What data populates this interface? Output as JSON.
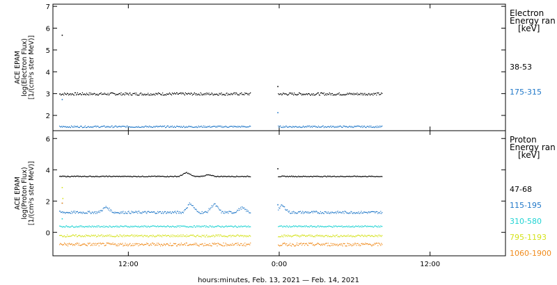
{
  "chart_data": [
    {
      "type": "scatter",
      "panel": "electron",
      "ylabel": [
        "ACE EPAM",
        "log(Electron Flux)",
        "[1/(cm²s ster MeV)]"
      ],
      "ylim": [
        1.3,
        7.1
      ],
      "yticks": [
        2,
        3,
        4,
        5,
        6,
        7
      ],
      "legend": {
        "title": [
          "Electron",
          "Energy ran",
          "[keV]"
        ],
        "placement": "right"
      },
      "series": [
        {
          "name": "38-53",
          "color": "#000000",
          "segments": [
            {
              "x_start": 6.5,
              "x_end": 21.7,
              "y_base": 3.0,
              "noise": 0.06
            },
            {
              "x_start": 23.9,
              "x_end": 32.2,
              "y_base": 3.0,
              "noise": 0.06
            }
          ],
          "outliers": [
            [
              6.7,
              5.7
            ],
            [
              23.85,
              3.35
            ]
          ]
        },
        {
          "name": "175-315",
          "color": "#1f77c8",
          "segments": [
            {
              "x_start": 6.5,
              "x_end": 21.7,
              "y_base": 1.5,
              "noise": 0.04
            },
            {
              "x_start": 23.9,
              "x_end": 32.2,
              "y_base": 1.5,
              "noise": 0.04
            }
          ],
          "outliers": [
            [
              6.7,
              2.75
            ],
            [
              23.85,
              2.15
            ]
          ]
        }
      ]
    },
    {
      "type": "scatter",
      "panel": "proton",
      "ylabel": [
        "ACE EPAM",
        "log(Proton Flux)",
        "[1/(cm²s ster MeV)]"
      ],
      "ylim": [
        -1.5,
        6.5
      ],
      "yticks": [
        0,
        2,
        4,
        6
      ],
      "legend": {
        "title": [
          "Proton",
          "Energy ran",
          "[keV]"
        ],
        "placement": "right"
      },
      "series": [
        {
          "name": "47-68",
          "color": "#000000",
          "segments": [
            {
              "x_start": 6.5,
              "x_end": 21.7,
              "y_base": 3.6,
              "noise": 0.03
            },
            {
              "x_start": 23.9,
              "x_end": 32.2,
              "y_base": 3.6,
              "noise": 0.03
            }
          ],
          "bumps": [
            [
              16.6,
              0.25
            ],
            [
              18.3,
              0.1
            ]
          ],
          "outliers": [
            [
              23.85,
              4.1
            ]
          ]
        },
        {
          "name": "115-195",
          "color": "#1f77c8",
          "segments": [
            {
              "x_start": 6.5,
              "x_end": 21.7,
              "y_base": 1.3,
              "noise": 0.08
            },
            {
              "x_start": 23.9,
              "x_end": 32.2,
              "y_base": 1.3,
              "noise": 0.08
            }
          ],
          "bumps": [
            [
              10.2,
              0.35
            ],
            [
              16.9,
              0.6
            ],
            [
              18.8,
              0.55
            ],
            [
              21.0,
              0.3
            ],
            [
              24.2,
              0.45
            ]
          ],
          "outliers": [
            [
              6.7,
              1.9
            ],
            [
              23.85,
              1.8
            ]
          ]
        },
        {
          "name": "310-580",
          "color": "#1fd3d3",
          "segments": [
            {
              "x_start": 6.5,
              "x_end": 21.7,
              "y_base": 0.4,
              "noise": 0.05
            },
            {
              "x_start": 23.9,
              "x_end": 32.2,
              "y_base": 0.4,
              "noise": 0.05
            }
          ],
          "outliers": [
            [
              6.7,
              0.9
            ]
          ]
        },
        {
          "name": "795-1193",
          "color": "#d4e21a",
          "segments": [
            {
              "x_start": 6.5,
              "x_end": 21.7,
              "y_base": -0.2,
              "noise": 0.07
            },
            {
              "x_start": 23.9,
              "x_end": 32.2,
              "y_base": -0.2,
              "noise": 0.07
            }
          ],
          "outliers": [
            [
              6.7,
              2.9
            ],
            [
              6.75,
              2.2
            ]
          ]
        },
        {
          "name": "1060-1900",
          "color": "#f08a1a",
          "segments": [
            {
              "x_start": 6.5,
              "x_end": 21.7,
              "y_base": -0.75,
              "noise": 0.1
            },
            {
              "x_start": 23.9,
              "x_end": 32.2,
              "y_base": -0.75,
              "noise": 0.1
            }
          ],
          "outliers": [
            [
              6.7,
              1.9
            ]
          ]
        }
      ]
    }
  ],
  "x_axis": {
    "unit": "hours since Feb. 13, 2021 00:00",
    "xlim": [
      6.0,
      42.0
    ],
    "ticks": [
      {
        "value": 12,
        "label": "12:00"
      },
      {
        "value": 24,
        "label": "0:00"
      },
      {
        "value": 36,
        "label": "12:00"
      }
    ],
    "title": "hours:minutes, Feb. 13, 2021 — Feb. 14, 2021"
  }
}
